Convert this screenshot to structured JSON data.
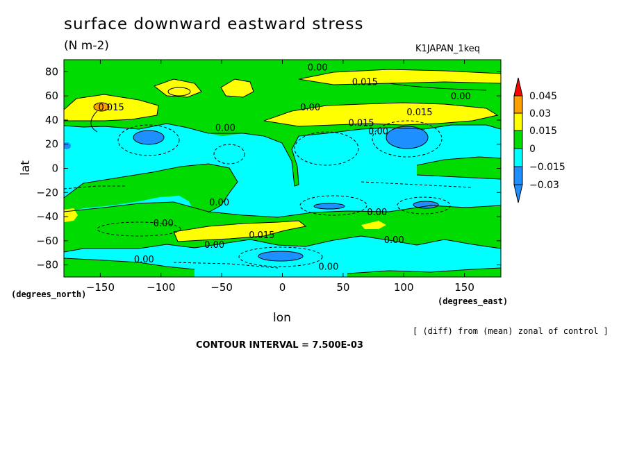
{
  "title": "surface downward eastward stress",
  "units": "(N m-2)",
  "run_id": "K1JAPAN_1keq",
  "note": "[ (diff) from (mean) zonal of control ]",
  "contour_interval": "CONTOUR INTERVAL = 7.500E-03",
  "colors": {
    "c_m030": "#1e8fff",
    "c_m015": "#00ffff",
    "c_0": "#00dc00",
    "c_015": "#ffff00",
    "c_030": "#ffa000",
    "c_045": "#ff0000"
  },
  "chart_data": {
    "type": "heatmap",
    "title": "surface downward eastward stress",
    "subtitle": "(N m-2)",
    "xlabel": "lon",
    "ylabel": "lat",
    "x_unit": "(degrees_east)",
    "y_unit": "(degrees_north)",
    "xlim": [
      -180,
      180
    ],
    "ylim": [
      -90,
      90
    ],
    "xticks": [
      -150,
      -100,
      -50,
      0,
      50,
      100,
      150
    ],
    "yticks": [
      80,
      60,
      40,
      20,
      0,
      -20,
      -40,
      -60,
      -80
    ],
    "colorbar": {
      "levels": [
        -0.03,
        -0.015,
        0,
        0.015,
        0.03,
        0.045
      ],
      "labels": [
        "0.045",
        "0.03",
        "0.015",
        "0",
        "−0.015",
        "−0.03"
      ]
    },
    "contour_labels": [
      {
        "text": "0.00",
        "lon": 29,
        "lat": 84
      },
      {
        "text": "0.015",
        "lon": 68,
        "lat": 72
      },
      {
        "text": "0.00",
        "lon": 147,
        "lat": 60
      },
      {
        "text": "0.015",
        "lon": -141,
        "lat": 51
      },
      {
        "text": "0.00",
        "lon": 23,
        "lat": 51
      },
      {
        "text": "0.015",
        "lon": 113,
        "lat": 47
      },
      {
        "text": "0.015",
        "lon": 65,
        "lat": 38
      },
      {
        "text": "0.00",
        "lon": -47,
        "lat": 34
      },
      {
        "text": "0.00",
        "lon": 79,
        "lat": 31
      },
      {
        "text": "0.00",
        "lon": -52,
        "lat": -28
      },
      {
        "text": "0.00",
        "lon": 78,
        "lat": -36
      },
      {
        "text": "0.00",
        "lon": -98,
        "lat": -45
      },
      {
        "text": "0.015",
        "lon": -17,
        "lat": -55
      },
      {
        "text": "0.00",
        "lon": 92,
        "lat": -59
      },
      {
        "text": "0.00",
        "lon": -56,
        "lat": -63
      },
      {
        "text": "0.00",
        "lon": -114,
        "lat": -75
      },
      {
        "text": "0.00",
        "lon": 38,
        "lat": -81
      }
    ]
  }
}
